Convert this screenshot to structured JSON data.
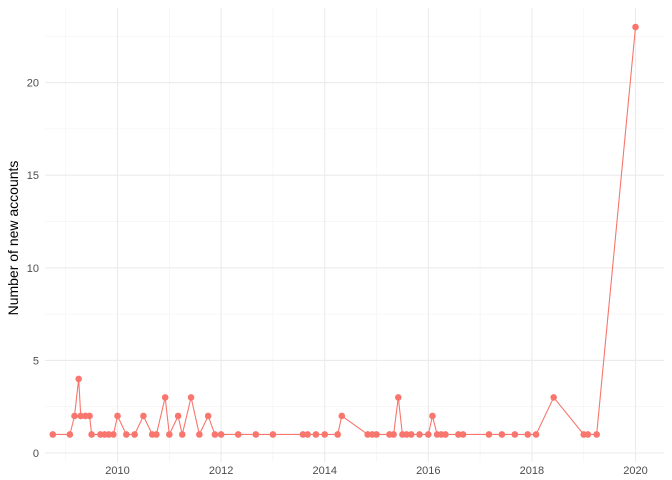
{
  "chart_data": {
    "type": "line",
    "title": "",
    "xlabel": "",
    "ylabel": "Number of new accounts",
    "xlim": [
      2008.6,
      2020.55
    ],
    "ylim": [
      0,
      23
    ],
    "x_ticks": [
      2010,
      2012,
      2014,
      2016,
      2018,
      2020
    ],
    "x_tick_labels": [
      "2010",
      "2012",
      "2014",
      "2016",
      "2018",
      "2020"
    ],
    "y_ticks": [
      0,
      5,
      10,
      15,
      20
    ],
    "y_tick_labels": [
      "0",
      "5",
      "10",
      "15",
      "20"
    ],
    "grid": true,
    "series": [
      {
        "color": "#F8766D",
        "points": [
          [
            2008.75,
            1
          ],
          [
            2009.08,
            1
          ],
          [
            2009.17,
            2
          ],
          [
            2009.25,
            4
          ],
          [
            2009.29,
            2
          ],
          [
            2009.38,
            2
          ],
          [
            2009.46,
            2
          ],
          [
            2009.5,
            1
          ],
          [
            2009.67,
            1
          ],
          [
            2009.75,
            1
          ],
          [
            2009.83,
            1
          ],
          [
            2009.92,
            1
          ],
          [
            2010.0,
            2
          ],
          [
            2010.17,
            1
          ],
          [
            2010.33,
            1
          ],
          [
            2010.5,
            2
          ],
          [
            2010.67,
            1
          ],
          [
            2010.75,
            1
          ],
          [
            2010.92,
            3
          ],
          [
            2011.0,
            1
          ],
          [
            2011.17,
            2
          ],
          [
            2011.25,
            1
          ],
          [
            2011.42,
            3
          ],
          [
            2011.58,
            1
          ],
          [
            2011.75,
            2
          ],
          [
            2011.88,
            1
          ],
          [
            2012.0,
            1
          ],
          [
            2012.33,
            1
          ],
          [
            2012.67,
            1
          ],
          [
            2013.0,
            1
          ],
          [
            2013.58,
            1
          ],
          [
            2013.67,
            1
          ],
          [
            2013.83,
            1
          ],
          [
            2014.0,
            1
          ],
          [
            2014.25,
            1
          ],
          [
            2014.33,
            2
          ],
          [
            2014.83,
            1
          ],
          [
            2014.92,
            1
          ],
          [
            2015.0,
            1
          ],
          [
            2015.25,
            1
          ],
          [
            2015.33,
            1
          ],
          [
            2015.42,
            3
          ],
          [
            2015.5,
            1
          ],
          [
            2015.58,
            1
          ],
          [
            2015.67,
            1
          ],
          [
            2015.83,
            1
          ],
          [
            2016.0,
            1
          ],
          [
            2016.08,
            2
          ],
          [
            2016.17,
            1
          ],
          [
            2016.25,
            1
          ],
          [
            2016.33,
            1
          ],
          [
            2016.58,
            1
          ],
          [
            2016.67,
            1
          ],
          [
            2017.17,
            1
          ],
          [
            2017.42,
            1
          ],
          [
            2017.67,
            1
          ],
          [
            2017.92,
            1
          ],
          [
            2018.08,
            1
          ],
          [
            2018.42,
            3
          ],
          [
            2019.0,
            1
          ],
          [
            2019.08,
            1
          ],
          [
            2019.25,
            1
          ],
          [
            2020.0,
            23
          ]
        ]
      }
    ]
  }
}
